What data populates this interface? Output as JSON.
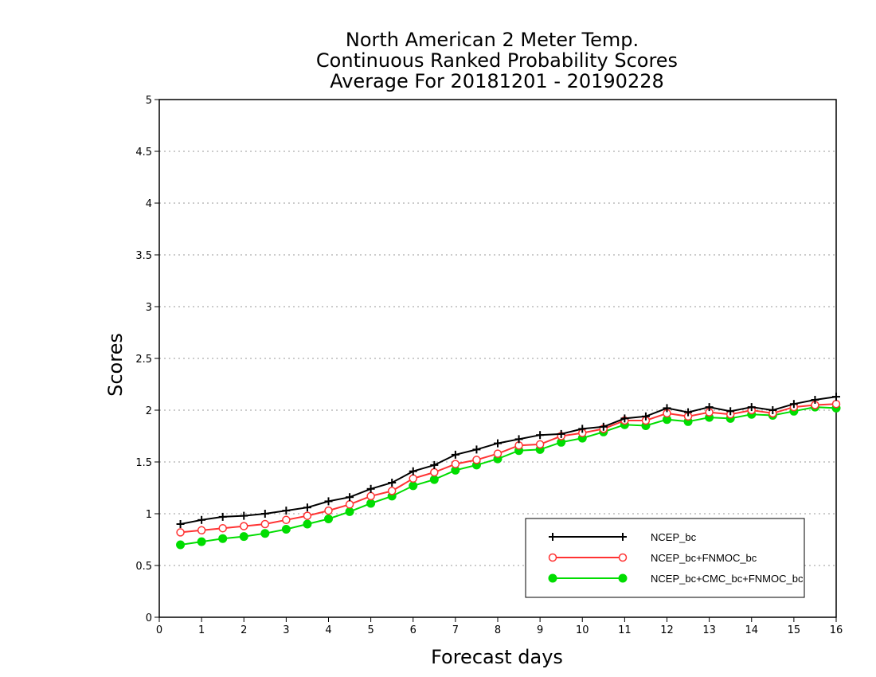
{
  "chart_data": {
    "type": "line",
    "title_lines": [
      "North American 2 Meter Temp.",
      "Continuous Ranked Probability Scores",
      "Average For 20181201 - 20190228"
    ],
    "xlabel": "Forecast days",
    "ylabel": "Scores",
    "xlim": [
      0,
      16
    ],
    "ylim": [
      0,
      5
    ],
    "x_ticks": [
      "0",
      "1",
      "2",
      "3",
      "4",
      "5",
      "6",
      "7",
      "8",
      "9",
      "10",
      "11",
      "12",
      "13",
      "14",
      "15",
      "16"
    ],
    "y_ticks": [
      "0",
      "0.5",
      "1",
      "1.5",
      "2",
      "2.5",
      "3",
      "3.5",
      "4",
      "4.5",
      "5"
    ],
    "grid": "horizontal dotted",
    "legend_position": "bottom-right",
    "x": [
      0.5,
      1,
      1.5,
      2,
      2.5,
      3,
      3.5,
      4,
      4.5,
      5,
      5.5,
      6,
      6.5,
      7,
      7.5,
      8,
      8.5,
      9,
      9.5,
      10,
      10.5,
      11,
      11.5,
      12,
      12.5,
      13,
      13.5,
      14,
      14.5,
      15,
      15.5,
      16
    ],
    "series": [
      {
        "name": "NCEP_bc",
        "color": "#000000",
        "marker": "plus",
        "values": [
          0.9,
          0.94,
          0.97,
          0.98,
          1.0,
          1.03,
          1.06,
          1.12,
          1.16,
          1.24,
          1.3,
          1.41,
          1.47,
          1.57,
          1.62,
          1.68,
          1.72,
          1.76,
          1.77,
          1.82,
          1.84,
          1.92,
          1.94,
          2.02,
          1.98,
          2.03,
          1.99,
          2.03,
          2.0,
          2.06,
          2.1,
          2.13
        ]
      },
      {
        "name": "NCEP_bc+FNMOC_bc",
        "color": "#ff3333",
        "marker": "open-circle",
        "values": [
          0.82,
          0.84,
          0.86,
          0.88,
          0.9,
          0.94,
          0.98,
          1.03,
          1.09,
          1.17,
          1.22,
          1.34,
          1.4,
          1.48,
          1.52,
          1.58,
          1.66,
          1.67,
          1.75,
          1.78,
          1.82,
          1.9,
          1.9,
          1.97,
          1.94,
          1.98,
          1.96,
          2.0,
          1.97,
          2.03,
          2.05,
          2.06
        ]
      },
      {
        "name": "NCEP_bc+CMC_bc+FNMOC_bc",
        "color": "#00dd00",
        "marker": "filled-circle",
        "values": [
          0.7,
          0.73,
          0.76,
          0.78,
          0.81,
          0.85,
          0.9,
          0.95,
          1.02,
          1.1,
          1.17,
          1.27,
          1.33,
          1.42,
          1.47,
          1.53,
          1.61,
          1.62,
          1.69,
          1.73,
          1.79,
          1.86,
          1.85,
          1.91,
          1.89,
          1.93,
          1.92,
          1.96,
          1.95,
          1.99,
          2.03,
          2.02
        ]
      }
    ]
  }
}
